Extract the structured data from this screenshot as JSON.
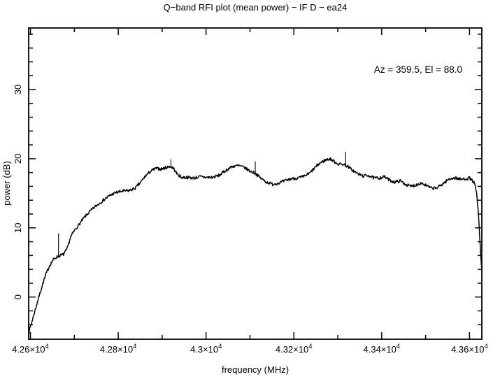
{
  "chart_data": {
    "type": "line",
    "title": "Q−band RFI plot (mean power) − IF D − ea24",
    "xlabel": "frequency (MHz)",
    "ylabel": "power (dB)",
    "annotation": "Az = 359.5, El = 88.0",
    "line_color": "#000000",
    "background_color": "#ffffff",
    "grid": false,
    "legend": "none",
    "xlim": [
      42596,
      43628
    ],
    "ylim": [
      -6.1,
      38.9
    ],
    "x_major_ticks": [
      42600,
      42800,
      43000,
      43200,
      43400,
      43600
    ],
    "x_major_tick_labels": [
      {
        "mantissa": "4.26×10",
        "exp": "4"
      },
      {
        "mantissa": "4.28×10",
        "exp": "4"
      },
      {
        "mantissa": "4.3×10",
        "exp": "4"
      },
      {
        "mantissa": "4.32×10",
        "exp": "4"
      },
      {
        "mantissa": "4.34×10",
        "exp": "4"
      },
      {
        "mantissa": "4.36×10",
        "exp": "4"
      }
    ],
    "x_minor_tick_start": 42700,
    "x_minor_tick_step": 200,
    "y_major_ticks": [
      0,
      10,
      20,
      30
    ],
    "y_major_tick_labels": [
      "0",
      "10",
      "20",
      "30"
    ],
    "y_minor_tick_start": -4,
    "y_minor_tick_step": 2,
    "noise_db": 0.22,
    "points": [
      [
        42596,
        -5.2
      ],
      [
        42604,
        -3.4
      ],
      [
        42612,
        -1.6
      ],
      [
        42620,
        0.2
      ],
      [
        42628,
        1.9
      ],
      [
        42636,
        3.4
      ],
      [
        42644,
        4.6
      ],
      [
        42652,
        5.4
      ],
      [
        42660,
        5.8
      ],
      [
        42668,
        6.0
      ],
      [
        42676,
        6.2
      ],
      [
        42684,
        7.0
      ],
      [
        42691,
        8.6
      ],
      [
        42700,
        9.6
      ],
      [
        42712,
        10.6
      ],
      [
        42724,
        11.6
      ],
      [
        42736,
        12.4
      ],
      [
        42748,
        13.1
      ],
      [
        42760,
        13.7
      ],
      [
        42772,
        14.3
      ],
      [
        42784,
        14.8
      ],
      [
        42795,
        15.1
      ],
      [
        42810,
        15.3
      ],
      [
        42825,
        15.4
      ],
      [
        42838,
        15.7
      ],
      [
        42850,
        16.5
      ],
      [
        42862,
        17.5
      ],
      [
        42874,
        18.2
      ],
      [
        42886,
        18.6
      ],
      [
        42898,
        18.5
      ],
      [
        42908,
        18.7
      ],
      [
        42918,
        18.9
      ],
      [
        42926,
        18.6
      ],
      [
        42934,
        17.8
      ],
      [
        42944,
        17.3
      ],
      [
        42958,
        17.3
      ],
      [
        42972,
        17.2
      ],
      [
        42986,
        17.4
      ],
      [
        43000,
        17.3
      ],
      [
        43015,
        17.3
      ],
      [
        43030,
        17.6
      ],
      [
        43045,
        18.3
      ],
      [
        43060,
        18.9
      ],
      [
        43075,
        19.0
      ],
      [
        43088,
        18.7
      ],
      [
        43100,
        18.2
      ],
      [
        43112,
        17.9
      ],
      [
        43124,
        17.2
      ],
      [
        43138,
        16.6
      ],
      [
        43152,
        16.3
      ],
      [
        43166,
        16.5
      ],
      [
        43180,
        16.8
      ],
      [
        43194,
        17.1
      ],
      [
        43208,
        17.2
      ],
      [
        43222,
        17.4
      ],
      [
        43236,
        17.9
      ],
      [
        43248,
        18.7
      ],
      [
        43260,
        19.4
      ],
      [
        43272,
        19.8
      ],
      [
        43282,
        20.0
      ],
      [
        43292,
        19.6
      ],
      [
        43302,
        19.2
      ],
      [
        43312,
        19.2
      ],
      [
        43322,
        18.9
      ],
      [
        43334,
        18.3
      ],
      [
        43346,
        17.8
      ],
      [
        43358,
        17.5
      ],
      [
        43370,
        17.6
      ],
      [
        43382,
        17.2
      ],
      [
        43394,
        17.2
      ],
      [
        43406,
        17.4
      ],
      [
        43418,
        16.9
      ],
      [
        43430,
        16.6
      ],
      [
        43442,
        16.8
      ],
      [
        43454,
        16.3
      ],
      [
        43466,
        16.0
      ],
      [
        43478,
        16.2
      ],
      [
        43490,
        16.5
      ],
      [
        43502,
        16.1
      ],
      [
        43514,
        15.7
      ],
      [
        43526,
        15.8
      ],
      [
        43538,
        16.3
      ],
      [
        43550,
        16.9
      ],
      [
        43560,
        17.2
      ],
      [
        43570,
        17.2
      ],
      [
        43580,
        17.0
      ],
      [
        43590,
        17.1
      ],
      [
        43600,
        17.2
      ],
      [
        43607,
        16.8
      ],
      [
        43612,
        16.3
      ],
      [
        43616,
        15.0
      ],
      [
        43620,
        12.3
      ],
      [
        43623,
        9.0
      ],
      [
        43626,
        5.3
      ],
      [
        43628,
        3.9
      ]
    ],
    "spikes": [
      {
        "freq": 42664,
        "top_db": 9.2
      },
      {
        "freq": 42920,
        "top_db": 19.9
      },
      {
        "freq": 43112,
        "top_db": 19.6
      },
      {
        "freq": 43318,
        "top_db": 21.0
      }
    ]
  }
}
